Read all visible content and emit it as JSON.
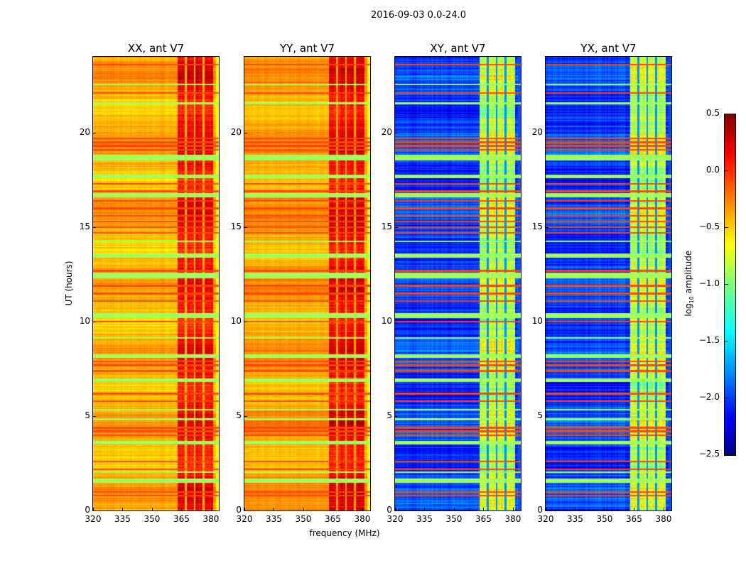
{
  "chart_data": {
    "type": "heatmap",
    "title": "2016-09-03 0.0-24.0",
    "xlabel": "frequency (MHz)",
    "ylabel": "UT (hours)",
    "xlim": [
      320,
      384
    ],
    "ylim": [
      0,
      24
    ],
    "xticks": [
      "320",
      "335",
      "350",
      "365",
      "380"
    ],
    "xtick_values": [
      320,
      335,
      350,
      365,
      380
    ],
    "yticks": [
      "0",
      "5",
      "10",
      "15",
      "20"
    ],
    "ytick_values": [
      0,
      5,
      10,
      15,
      20
    ],
    "panels": [
      {
        "title": "XX, ant V7",
        "baseline_log10": -0.4,
        "band_log10": 0.1
      },
      {
        "title": "YY, ant V7",
        "baseline_log10": -0.35,
        "band_log10": 0.15
      },
      {
        "title": "XY, ant V7",
        "baseline_log10": -1.95,
        "band_log10": -0.8
      },
      {
        "title": "YX, ant V7",
        "baseline_log10": -1.95,
        "band_log10": -0.8
      }
    ],
    "rfi_band_MHz": [
      363,
      381
    ],
    "rfi_band_gaps_MHz": [
      367,
      371.5,
      376
    ],
    "high_rows_hours": [
      0.8,
      1.0,
      2.2,
      2.6,
      4.0,
      4.2,
      4.4,
      5.8,
      6.2,
      7.4,
      7.7,
      7.9,
      10.0,
      11.1,
      11.5,
      11.9,
      12.7,
      14.7,
      15.0,
      15.3,
      15.6,
      16.0,
      16.4,
      16.9,
      17.3,
      19.1,
      19.3,
      19.5,
      19.7,
      22.1,
      23.6
    ],
    "low_rows_hours": [
      [
        1.5,
        1.7
      ],
      [
        2.0,
        2.1
      ],
      [
        3.5,
        3.7
      ],
      [
        4.8,
        4.9
      ],
      [
        5.3,
        5.4
      ],
      [
        6.8,
        7.0
      ],
      [
        8.1,
        8.3
      ],
      [
        9.1,
        9.2
      ],
      [
        10.2,
        10.45
      ],
      [
        12.3,
        12.6
      ],
      [
        13.4,
        13.6
      ],
      [
        14.2,
        14.3
      ],
      [
        16.6,
        16.8
      ],
      [
        17.6,
        17.8
      ],
      [
        18.55,
        18.85
      ],
      [
        21.5,
        21.6
      ],
      [
        22.5,
        22.6
      ]
    ],
    "colorbar": {
      "label_main": "log",
      "label_sub": "10",
      "label_rest": " amplitude",
      "range": [
        -2.5,
        0.5
      ],
      "ticks": [
        "0.5",
        "0.0",
        "−0.5",
        "−1.0",
        "−1.5",
        "−2.0",
        "−2.5"
      ],
      "tick_values": [
        0.5,
        0.0,
        -0.5,
        -1.0,
        -1.5,
        -2.0,
        -2.5
      ],
      "colormap": "jet"
    }
  }
}
